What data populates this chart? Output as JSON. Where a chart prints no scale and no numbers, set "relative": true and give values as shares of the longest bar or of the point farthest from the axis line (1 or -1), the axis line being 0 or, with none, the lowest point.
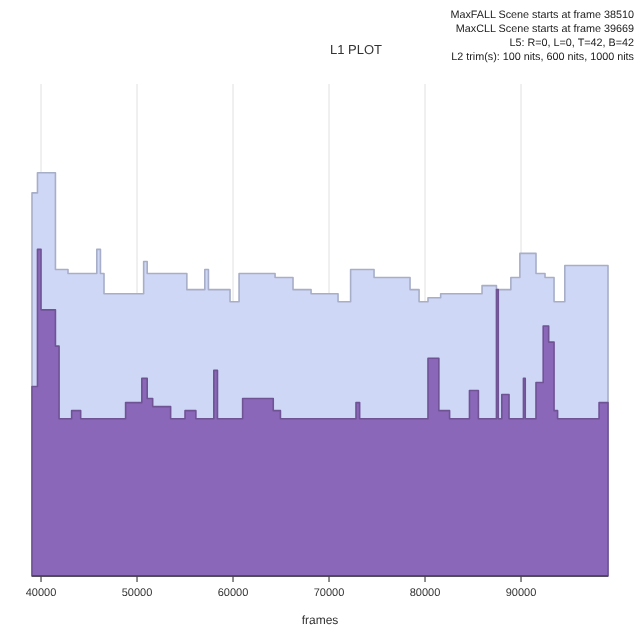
{
  "chart_data": {
    "type": "area",
    "title": "L1 PLOT",
    "xlabel": "frames",
    "relative": true,
    "grid": "x",
    "annotations": [
      "MaxFALL Scene starts at frame 38510",
      "MaxCLL Scene starts at frame 39669",
      "L5: R=0, L=0, T=42, B=42",
      "L2 trim(s): 100 nits, 600 nits, 1000 nits"
    ],
    "xlim": [
      39060,
      99060
    ],
    "xticks": [
      40000,
      50000,
      60000,
      70000,
      80000,
      90000
    ],
    "series": [
      {
        "color": "#cfd7f6",
        "x": [
          39060,
          39630,
          41500,
          42810,
          45810,
          46190,
          46560,
          50690,
          51060,
          55190,
          57060,
          57440,
          59690,
          60630,
          64380,
          66250,
          68130,
          70940,
          72250,
          74690,
          78440,
          79380,
          80310,
          81630,
          83130,
          85940,
          87440,
          88940,
          89880,
          91560,
          92500,
          93440,
          94560,
          99060
        ],
        "values": [
          0.95,
          1,
          0.76,
          0.75,
          0.81,
          0.75,
          0.7,
          0.78,
          0.75,
          0.71,
          0.76,
          0.71,
          0.68,
          0.75,
          0.74,
          0.71,
          0.7,
          0.68,
          0.76,
          0.74,
          0.71,
          0.68,
          0.69,
          0.7,
          0.7,
          0.72,
          0.71,
          0.74,
          0.8,
          0.75,
          0.74,
          0.68,
          0.77,
          0.77
        ]
      },
      {
        "color": "#8a67b8",
        "x": [
          39060,
          39630,
          40000,
          41500,
          41880,
          43190,
          44130,
          48810,
          50500,
          51060,
          51630,
          53500,
          55000,
          56130,
          58000,
          58380,
          61000,
          64190,
          64940,
          72810,
          73190,
          80310,
          81440,
          82560,
          84630,
          85560,
          87440,
          87630,
          88000,
          88750,
          90250,
          90440,
          91560,
          92310,
          92880,
          93440,
          93810,
          98130,
          99060
        ],
        "values": [
          0.47,
          0.81,
          0.66,
          0.57,
          0.39,
          0.41,
          0.39,
          0.43,
          0.49,
          0.44,
          0.42,
          0.39,
          0.41,
          0.39,
          0.51,
          0.39,
          0.44,
          0.41,
          0.39,
          0.43,
          0.39,
          0.54,
          0.41,
          0.39,
          0.46,
          0.39,
          0.71,
          0.39,
          0.45,
          0.39,
          0.49,
          0.39,
          0.48,
          0.62,
          0.58,
          0.41,
          0.39,
          0.43,
          0.43
        ]
      }
    ]
  }
}
